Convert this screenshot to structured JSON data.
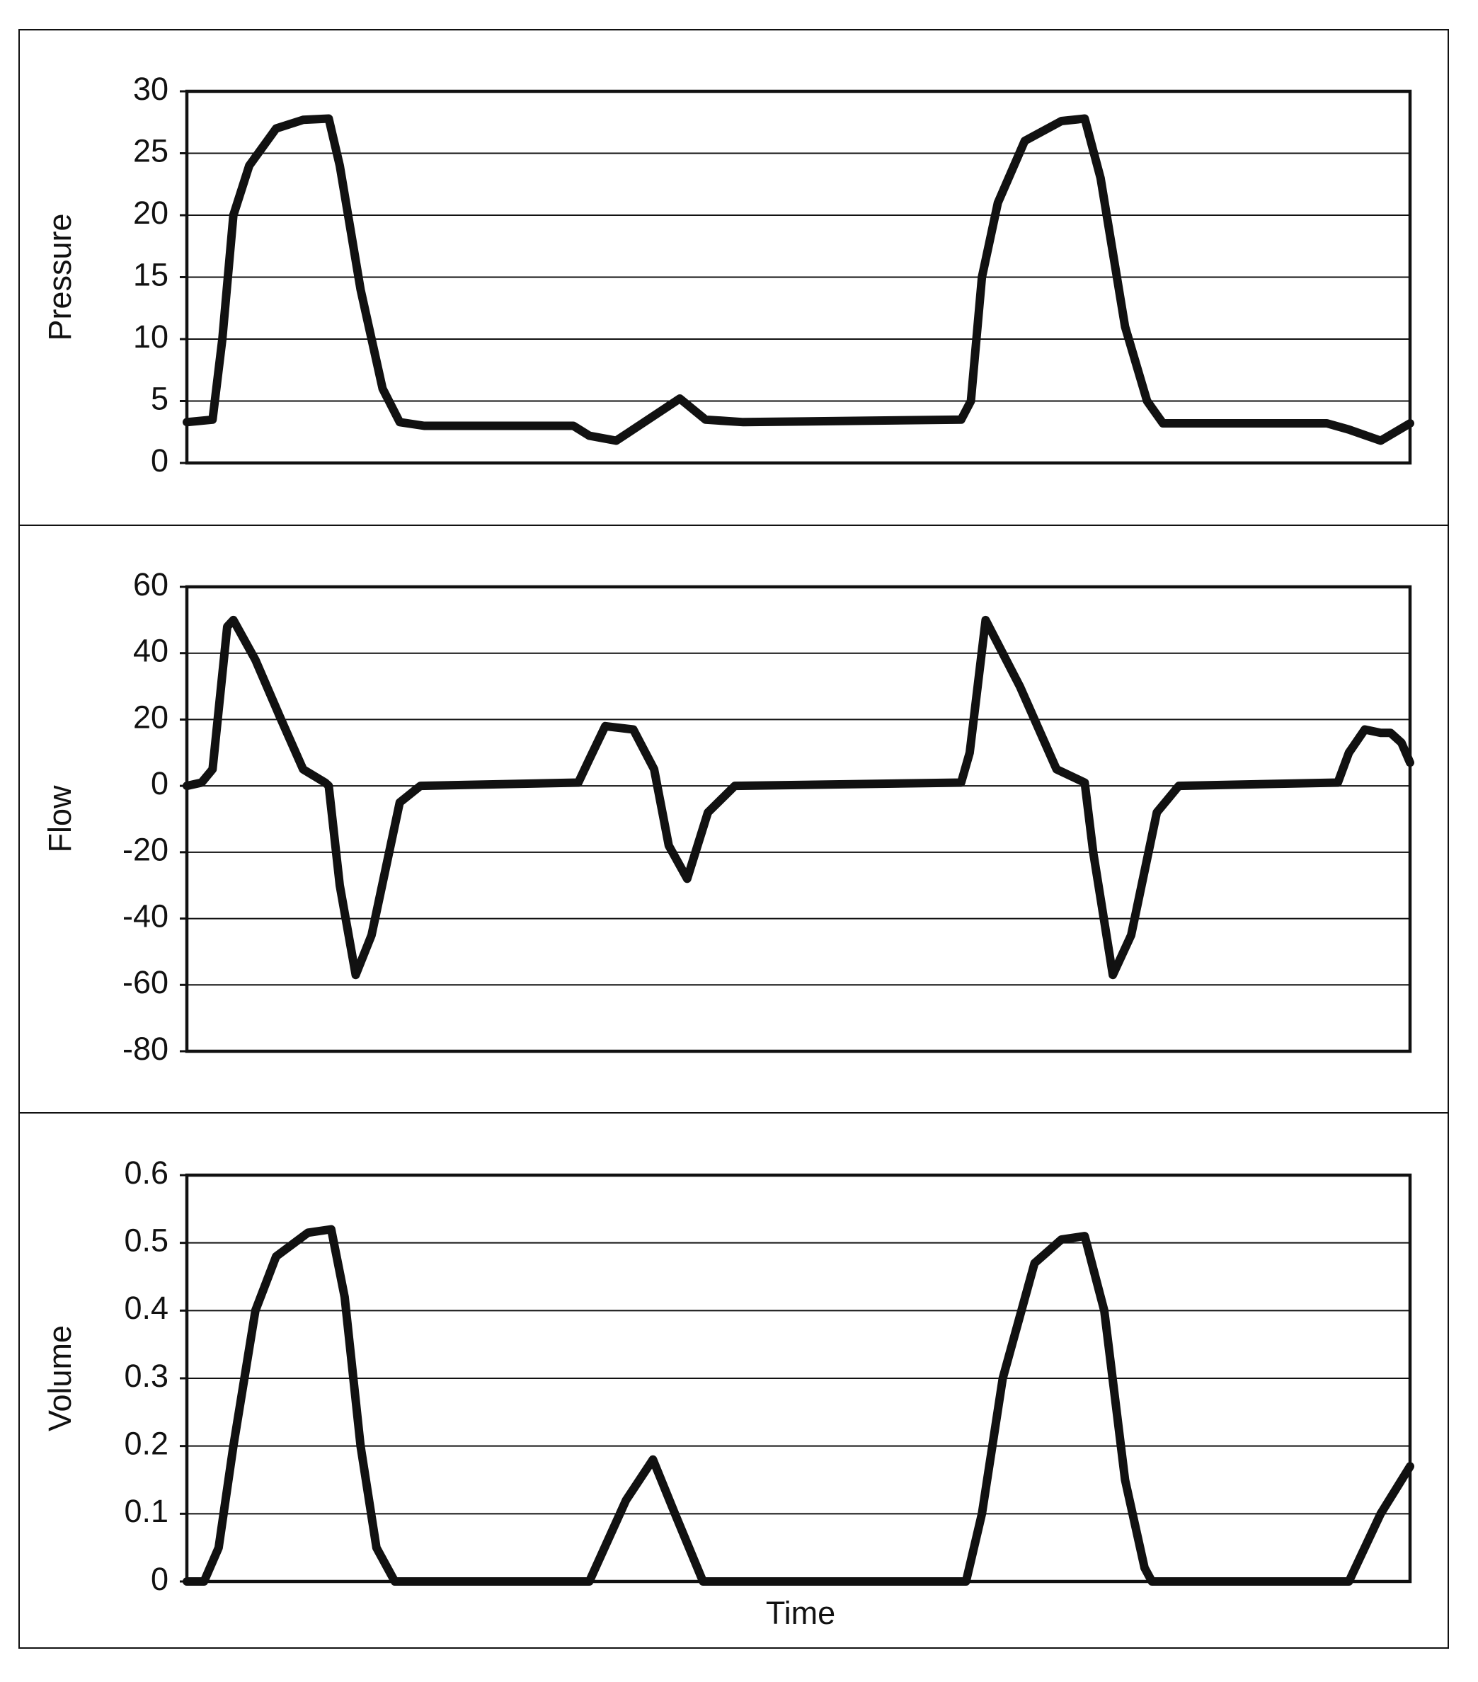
{
  "chart_data": [
    {
      "type": "line",
      "y_label": "Pressure",
      "xlim": [
        0,
        100
      ],
      "ylim": [
        0,
        30
      ],
      "yticks": [
        0,
        5,
        10,
        15,
        20,
        25,
        30
      ],
      "grid": true,
      "series": [
        {
          "color": "#111111",
          "x": [
            0,
            2.1,
            2.9,
            3.8,
            5.1,
            7.3,
            9.5,
            11.6,
            12.5,
            14.2,
            16.0,
            17.4,
            19.4,
            31.6,
            32.9,
            35.1,
            37.7,
            40.3,
            42.4,
            45.5,
            63.3,
            64.1,
            65.0,
            66.3,
            68.5,
            71.5,
            73.4,
            74.7,
            76.7,
            78.5,
            79.8,
            93.2,
            95.0,
            97.6,
            100
          ],
          "values": [
            3.3,
            3.5,
            10,
            20,
            24,
            27,
            27.7,
            27.8,
            24,
            14,
            6,
            3.3,
            3,
            3,
            2.2,
            1.8,
            3.5,
            5.2,
            3.5,
            3.3,
            3.5,
            5,
            15,
            21,
            26,
            27.6,
            27.8,
            23,
            11,
            5,
            3.2,
            3.2,
            2.7,
            1.8,
            3.2
          ]
        }
      ]
    },
    {
      "type": "line",
      "y_label": "Flow",
      "xlim": [
        0,
        100
      ],
      "ylim": [
        -80,
        60
      ],
      "yticks": [
        -80,
        -60,
        -40,
        -20,
        0,
        20,
        40,
        60
      ],
      "grid": true,
      "series": [
        {
          "color": "#111111",
          "x": [
            0,
            1.2,
            2.1,
            3.3,
            3.8,
            5.6,
            7.7,
            9.5,
            11.3,
            11.6,
            12.5,
            13.8,
            15.1,
            17.4,
            19.1,
            32.0,
            32.9,
            34.2,
            36.5,
            38.2,
            39.4,
            40.9,
            42.6,
            44.8,
            63.3,
            64.0,
            65.3,
            68.1,
            71.1,
            73.4,
            74.1,
            75.7,
            77.2,
            79.3,
            81.1,
            94.1,
            95.0,
            96.3,
            97.6,
            98.4,
            99.3,
            100
          ],
          "values": [
            0,
            1,
            5,
            48,
            50,
            38,
            20,
            5,
            1,
            0,
            -30,
            -57,
            -45,
            -5,
            0,
            1,
            8,
            18,
            17,
            5,
            -18,
            -28,
            -8,
            0,
            1,
            10,
            50,
            30,
            5,
            1,
            -20,
            -57,
            -45,
            -8,
            0,
            1,
            10,
            17,
            16,
            16,
            13,
            7
          ]
        }
      ]
    },
    {
      "type": "line",
      "y_label": "Volume",
      "x_label": "Time",
      "xlim": [
        0,
        100
      ],
      "ylim": [
        0,
        0.6
      ],
      "yticks": [
        0,
        0.1,
        0.2,
        0.3,
        0.4,
        0.5,
        0.6
      ],
      "grid": true,
      "series": [
        {
          "color": "#111111",
          "x": [
            0,
            1.4,
            2.6,
            3.8,
            5.6,
            7.3,
            9.9,
            11.8,
            12.9,
            14.2,
            15.5,
            17.0,
            32.9,
            35.9,
            38.1,
            39.9,
            42.2,
            63.7,
            65.0,
            66.7,
            69.3,
            71.5,
            73.4,
            75.0,
            76.7,
            78.3,
            78.9,
            95.0,
            97.6,
            100
          ],
          "values": [
            0,
            0,
            0.05,
            0.2,
            0.4,
            0.48,
            0.515,
            0.52,
            0.42,
            0.2,
            0.05,
            0,
            0,
            0.12,
            0.18,
            0.1,
            0,
            0,
            0.1,
            0.3,
            0.47,
            0.505,
            0.51,
            0.4,
            0.15,
            0.02,
            0,
            0,
            0.1,
            0.17
          ]
        }
      ]
    }
  ]
}
